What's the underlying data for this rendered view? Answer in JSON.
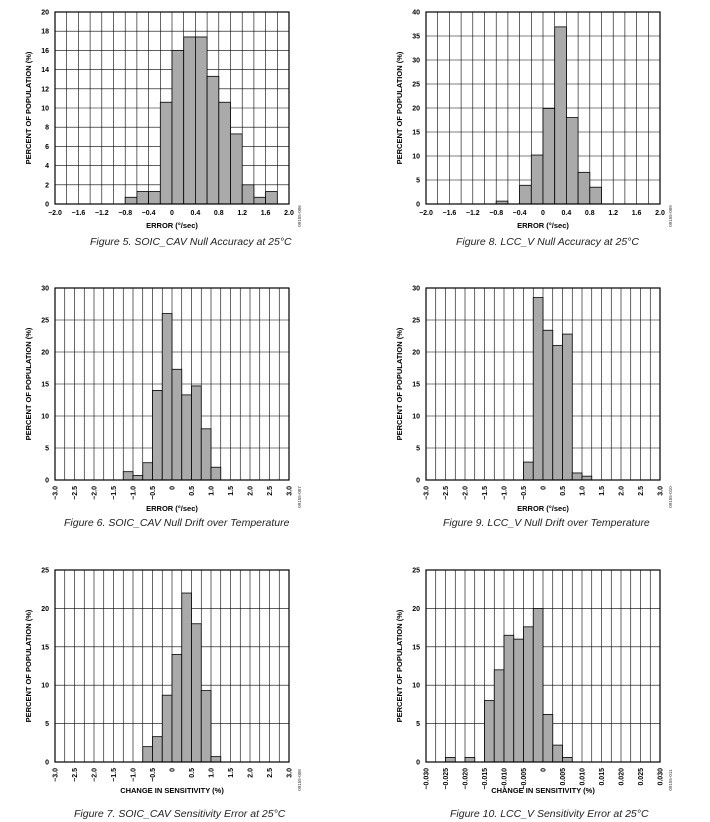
{
  "figures": [
    {
      "caption": "Figure 5. SOIC_CAV Null Accuracy at 25°C",
      "code": "09155-006"
    },
    {
      "caption": "Figure 8. LCC_V Null Accuracy at 25°C",
      "code": "09155-009"
    },
    {
      "caption": "Figure 6. SOIC_CAV Null Drift over Temperature",
      "code": "09155-007"
    },
    {
      "caption": "Figure 9. LCC_V Null Drift over Temperature",
      "code": "09155-010"
    },
    {
      "caption": "Figure 7. SOIC_CAV Sensitivity Error at 25°C",
      "code": "09155-008"
    },
    {
      "caption": "Figure 10. LCC_V Sensitivity Error at 25°C",
      "code": "09155-011"
    }
  ],
  "chart_data": [
    {
      "type": "bar",
      "xlabel": "ERROR (°/sec)",
      "ylabel": "PERCENT OF POPULATION (%)",
      "xlim": [
        -2.0,
        2.0
      ],
      "ylim": [
        0,
        20
      ],
      "xticks": [
        "−2.0",
        "−1.6",
        "−1.2",
        "−0.8",
        "−0.4",
        "0",
        "0.4",
        "0.8",
        "1.2",
        "1.6",
        "2.0"
      ],
      "yticks": [
        "0",
        "2",
        "4",
        "6",
        "8",
        "10",
        "12",
        "14",
        "16",
        "18",
        "20"
      ],
      "x_tick_rotation": 0,
      "bin_width": 0.2,
      "x": [
        -0.8,
        -0.6,
        -0.4,
        -0.2,
        0.0,
        0.2,
        0.4,
        0.6,
        0.8,
        1.0,
        1.2,
        1.4,
        1.6
      ],
      "values": [
        0.7,
        1.3,
        1.3,
        10.6,
        16.0,
        17.4,
        17.4,
        13.3,
        10.6,
        7.3,
        2.0,
        0.7,
        1.3
      ]
    },
    {
      "type": "bar",
      "xlabel": "ERROR (°/sec)",
      "ylabel": "PERCENT OF POPULATION (%)",
      "xlim": [
        -2.0,
        2.0
      ],
      "ylim": [
        0,
        40
      ],
      "xticks": [
        "−2.0",
        "−1.6",
        "−1.2",
        "−0.8",
        "−0.4",
        "0",
        "0.4",
        "0.8",
        "1.2",
        "1.6",
        "2.0"
      ],
      "yticks": [
        "0",
        "5",
        "10",
        "15",
        "20",
        "25",
        "30",
        "35",
        "40"
      ],
      "x_tick_rotation": 0,
      "bin_width": 0.2,
      "x": [
        -1.0,
        -0.8,
        -0.6,
        -0.4,
        -0.2,
        0.0,
        0.2,
        0.4,
        0.6,
        0.8
      ],
      "values": [
        0,
        0.6,
        0,
        3.9,
        10.2,
        19.9,
        36.9,
        18.0,
        6.6,
        3.5
      ]
    },
    {
      "type": "bar",
      "xlabel": "ERROR (°/sec)",
      "ylabel": "PERCENT OF POPULATION (%)",
      "xlim": [
        -3.0,
        3.0
      ],
      "ylim": [
        0,
        30
      ],
      "xticks": [
        "−3.0",
        "−2.5",
        "−2.0",
        "−1.5",
        "−1.0",
        "−0.5",
        "0",
        "0.5",
        "1.0",
        "1.5",
        "2.0",
        "2.5",
        "3.0"
      ],
      "yticks": [
        "0",
        "5",
        "10",
        "15",
        "20",
        "25",
        "30"
      ],
      "x_tick_rotation": -90,
      "bin_width": 0.25,
      "x": [
        -1.25,
        -1.0,
        -0.75,
        -0.5,
        -0.25,
        0.0,
        0.25,
        0.5,
        0.75,
        1.0
      ],
      "values": [
        1.3,
        0.7,
        2.7,
        14.0,
        26.0,
        17.3,
        13.3,
        14.7,
        8.0,
        2.0
      ]
    },
    {
      "type": "bar",
      "xlabel": "ERROR (°/sec)",
      "ylabel": "PERCENT OF POPULATION (%)",
      "xlim": [
        -3.0,
        3.0
      ],
      "ylim": [
        0,
        30
      ],
      "xticks": [
        "−3.0",
        "−2.5",
        "−2.0",
        "−1.5",
        "−1.0",
        "−0.5",
        "0",
        "0.5",
        "1.0",
        "1.5",
        "2.0",
        "2.5",
        "3.0"
      ],
      "yticks": [
        "0",
        "5",
        "10",
        "15",
        "20",
        "25",
        "30"
      ],
      "x_tick_rotation": -90,
      "bin_width": 0.25,
      "x": [
        -0.5,
        -0.25,
        0.0,
        0.25,
        0.5,
        0.75,
        1.0
      ],
      "values": [
        2.8,
        28.5,
        23.4,
        21.0,
        22.8,
        1.1,
        0.6
      ]
    },
    {
      "type": "bar",
      "xlabel": "CHANGE IN SENSITIVITY (%)",
      "ylabel": "PERCENT OF POPULATION (%)",
      "xlim": [
        -3.0,
        3.0
      ],
      "ylim": [
        0,
        25
      ],
      "xticks": [
        "−3.0",
        "−2.5",
        "−2.0",
        "−1.5",
        "−1.0",
        "−0.5",
        "0",
        "0.5",
        "1.0",
        "1.5",
        "2.0",
        "2.5",
        "3.0"
      ],
      "yticks": [
        "0",
        "5",
        "10",
        "15",
        "20",
        "25"
      ],
      "x_tick_rotation": -90,
      "bin_width": 0.25,
      "x": [
        -0.75,
        -0.5,
        -0.25,
        0.0,
        0.25,
        0.5,
        0.75,
        1.0
      ],
      "values": [
        2.0,
        3.3,
        8.7,
        14.0,
        22.0,
        18.0,
        9.3,
        0.7
      ]
    },
    {
      "type": "bar",
      "xlabel": "CHANGE IN SENSITIVITY (%)",
      "ylabel": "PERCENT OF POPULATION (%)",
      "xlim": [
        -0.03,
        0.03
      ],
      "ylim": [
        0,
        25
      ],
      "xticks": [
        "−0.030",
        "−0.025",
        "−0.020",
        "−0.015",
        "−0.010",
        "−0.005",
        "0",
        "0.005",
        "0.010",
        "0.015",
        "0.020",
        "0.025",
        "0.030"
      ],
      "yticks": [
        "0",
        "5",
        "10",
        "15",
        "20",
        "25"
      ],
      "x_tick_rotation": -90,
      "bin_width": 0.0025,
      "x": [
        -0.025,
        -0.0225,
        -0.02,
        -0.0175,
        -0.015,
        -0.0125,
        -0.01,
        -0.0075,
        -0.005,
        -0.0025,
        0.0,
        0.0025,
        0.005
      ],
      "values": [
        0.6,
        0,
        0.6,
        0,
        8.0,
        12.0,
        16.5,
        16.0,
        17.6,
        20.0,
        6.2,
        2.2,
        0.6
      ]
    }
  ]
}
